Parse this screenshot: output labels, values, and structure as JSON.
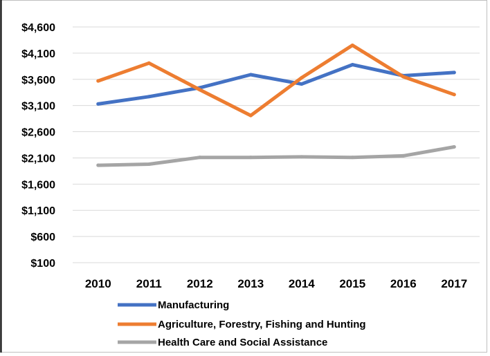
{
  "chart_data": {
    "type": "line",
    "categories": [
      "2010",
      "2011",
      "2012",
      "2013",
      "2014",
      "2015",
      "2016",
      "2017"
    ],
    "y_ticks": [
      "$4,600",
      "$4,100",
      "$3,600",
      "$3,100",
      "$2,600",
      "$2,100",
      "$1,600",
      "$1,100",
      "$600",
      "$100"
    ],
    "y_tick_values": [
      4600,
      4100,
      3600,
      3100,
      2600,
      2100,
      1600,
      1100,
      600,
      100
    ],
    "ylim": [
      100,
      4600
    ],
    "grid": true,
    "legend_position": "bottom",
    "series": [
      {
        "name": "Manufacturing",
        "color": "#4472C4",
        "values": [
          3130,
          3270,
          3440,
          3690,
          3510,
          3880,
          3670,
          3730
        ]
      },
      {
        "name": "Agriculture, Forestry, Fishing and Hunting",
        "color": "#ED7D31",
        "values": [
          3570,
          3910,
          3400,
          2910,
          3630,
          4250,
          3650,
          3310
        ]
      },
      {
        "name": "Health Care and Social Assistance",
        "color": "#A5A5A5",
        "values": [
          1960,
          1980,
          2110,
          2110,
          2120,
          2110,
          2140,
          2310
        ]
      }
    ]
  }
}
